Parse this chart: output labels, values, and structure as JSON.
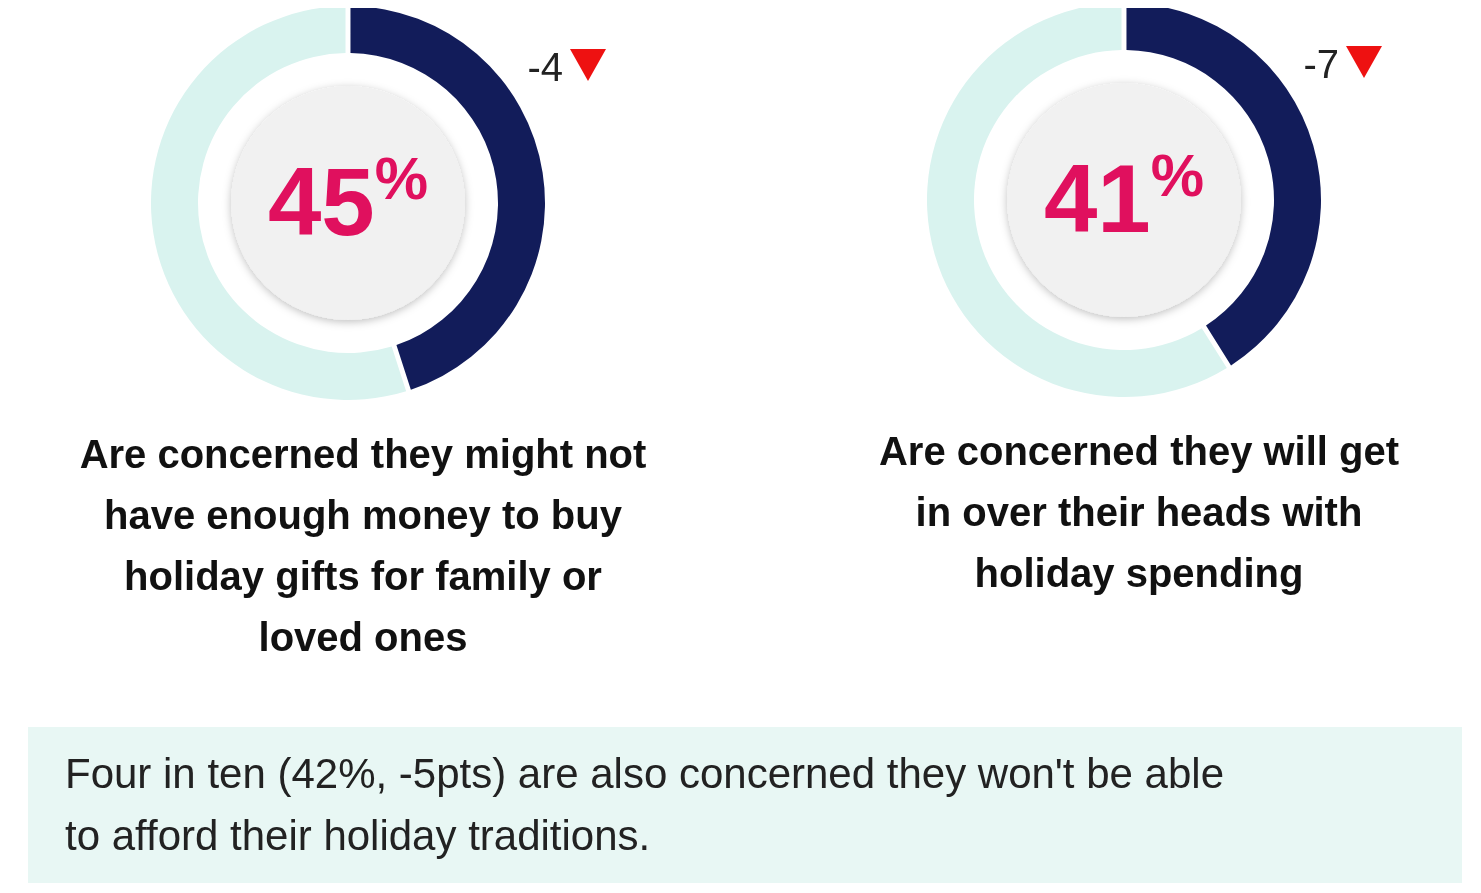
{
  "chart_data": [
    {
      "type": "donut",
      "title": "Are concerned they might not have enough money to buy holiday gifts for family or loved ones",
      "categories": [
        null,
        null
      ],
      "values": [
        45,
        55
      ],
      "colors": [
        "#121c5a",
        "#d9f3ef"
      ],
      "value_labels": [
        "45%",
        null
      ],
      "annotations": [
        "-4"
      ]
    },
    {
      "type": "donut",
      "title": "Are concerned they will get in over their heads with holiday spending",
      "categories": [
        null,
        null
      ],
      "values": [
        41,
        59
      ],
      "colors": [
        "#121c5a",
        "#d9f3ef"
      ],
      "value_labels": [
        "41%",
        null
      ],
      "annotations": [
        "-7"
      ]
    },
    {
      "type": "other",
      "annotations": [
        "Four in ten (42%, -5pts) are also concerned they won't be able to afford their holiday traditions."
      ]
    }
  ]
}
